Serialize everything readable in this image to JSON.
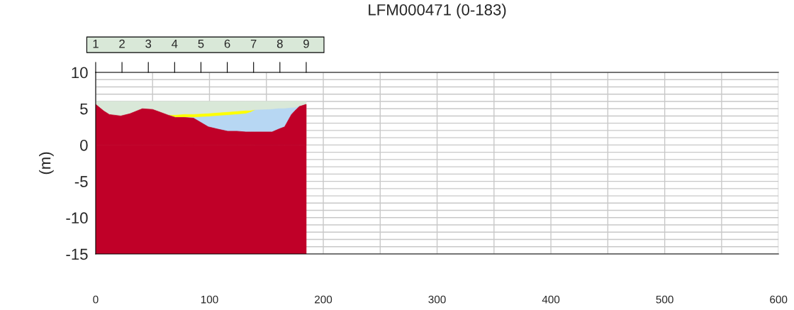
{
  "chart_data": {
    "type": "area",
    "title": "LFM000471 (0-183)",
    "ylabel": "(m)",
    "xlim": [
      0,
      600
    ],
    "ylim": [
      -15,
      10
    ],
    "xticks": [
      0,
      {
        "value": 50,
        "label": null
      },
      100,
      {
        "value": 150,
        "label": null
      },
      200,
      {
        "value": 250,
        "label": null
      },
      300,
      {
        "value": 350,
        "label": null
      },
      400,
      {
        "value": 450,
        "label": null
      },
      500,
      {
        "value": 550,
        "label": null
      },
      600
    ],
    "yticks": [
      -15,
      {
        "value": -14,
        "label": null
      },
      {
        "value": -13,
        "label": null
      },
      {
        "value": -12,
        "label": null
      },
      {
        "value": -11,
        "label": null
      },
      -10,
      {
        "value": -9,
        "label": null
      },
      {
        "value": -8,
        "label": null
      },
      {
        "value": -7,
        "label": null
      },
      {
        "value": -6,
        "label": null
      },
      -5,
      {
        "value": -4,
        "label": null
      },
      {
        "value": -3,
        "label": null
      },
      {
        "value": -2,
        "label": null
      },
      {
        "value": -1,
        "label": null
      },
      0,
      {
        "value": 1,
        "label": null
      },
      {
        "value": 2,
        "label": null
      },
      {
        "value": 3,
        "label": null
      },
      {
        "value": 4,
        "label": null
      },
      5,
      {
        "value": 6,
        "label": null
      },
      {
        "value": 7,
        "label": null
      },
      {
        "value": 8,
        "label": null
      },
      {
        "value": 9,
        "label": null
      },
      10
    ],
    "annotations": [
      "1",
      "2",
      "3",
      "4",
      "5",
      "6",
      "7",
      "8",
      "9"
    ],
    "grid": true,
    "x": [
      0,
      7,
      12,
      22,
      30,
      41,
      50,
      57,
      64,
      70,
      78,
      86,
      99,
      107,
      116,
      124,
      132,
      136,
      140,
      155,
      161,
      166,
      172,
      175,
      179,
      185
    ],
    "series": [
      {
        "color": "#d9e8d8",
        "values": [
          6,
          6,
          6,
          6,
          6,
          6,
          6,
          6,
          6,
          6,
          6,
          6,
          6,
          6,
          6,
          6,
          6,
          6,
          6,
          6,
          6,
          6,
          6,
          6,
          6,
          6
        ]
      },
      {
        "color": "#ffff00",
        "values": [
          null,
          null,
          null,
          null,
          null,
          null,
          null,
          null,
          4.1,
          4.1,
          4.2,
          4.2,
          4.3,
          4.4,
          4.5,
          4.6,
          4.7,
          4.7,
          4.8,
          null,
          null,
          null,
          null,
          null,
          null,
          null
        ]
      },
      {
        "color": "#b7d7f3",
        "values": [
          null,
          null,
          null,
          null,
          null,
          null,
          null,
          null,
          4.1,
          3.8,
          3.8,
          3.8,
          3.9,
          4.0,
          4.1,
          4.2,
          4.3,
          4.5,
          4.8,
          4.9,
          5.0,
          5.0,
          5.1,
          5.1,
          5.3,
          null
        ]
      },
      {
        "color": "#c00028",
        "values": [
          5.6,
          4.7,
          4.2,
          4.0,
          4.3,
          5.0,
          4.9,
          4.5,
          4.1,
          3.8,
          3.8,
          3.7,
          2.5,
          2.2,
          1.9,
          1.9,
          1.8,
          1.8,
          1.8,
          1.8,
          2.2,
          2.5,
          4.2,
          4.7,
          5.3,
          5.6
        ]
      },
      {
        "color": "#c00028",
        "values": [
          -15,
          -15,
          -15,
          -15,
          -15,
          -15,
          -15,
          -15,
          -15,
          -15,
          -15,
          -15,
          -15,
          -15,
          -15,
          -15,
          -15,
          -15,
          -15,
          -15,
          -15,
          -15,
          -15,
          -15,
          -15,
          -15
        ]
      }
    ]
  }
}
